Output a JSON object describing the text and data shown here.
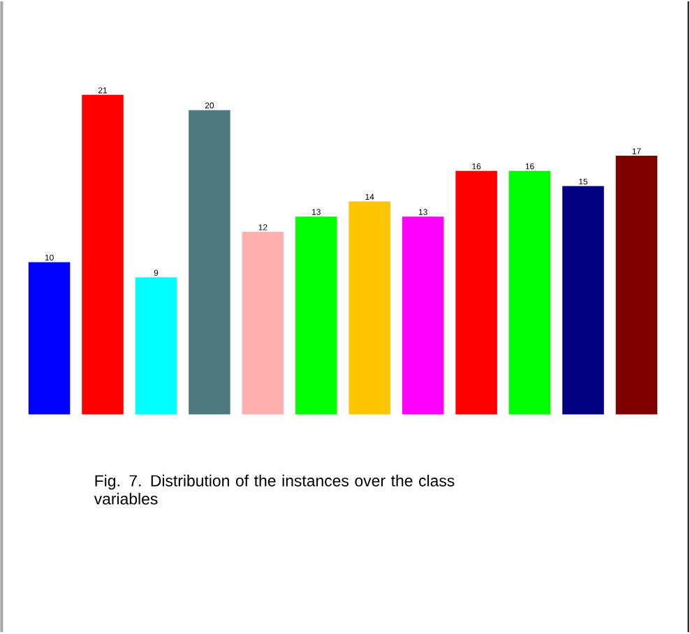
{
  "chart_data": {
    "type": "bar",
    "categories": [
      null,
      null,
      null,
      null,
      null,
      null,
      null,
      null,
      null,
      null,
      null,
      null
    ],
    "values": [
      10,
      21,
      9,
      20,
      12,
      13,
      14,
      13,
      16,
      16,
      15,
      17
    ],
    "colors": [
      "#0000ff",
      "#ff0000",
      "#00ffff",
      "#4f7a80",
      "#ffb0b0",
      "#00ff00",
      "#ffc600",
      "#ff00ff",
      "#ff0000",
      "#00ff00",
      "#000080",
      "#800000"
    ],
    "data_labels": true,
    "annotations": [
      "Fig. 7.  Distribution of the  instances over the class variables"
    ]
  }
}
